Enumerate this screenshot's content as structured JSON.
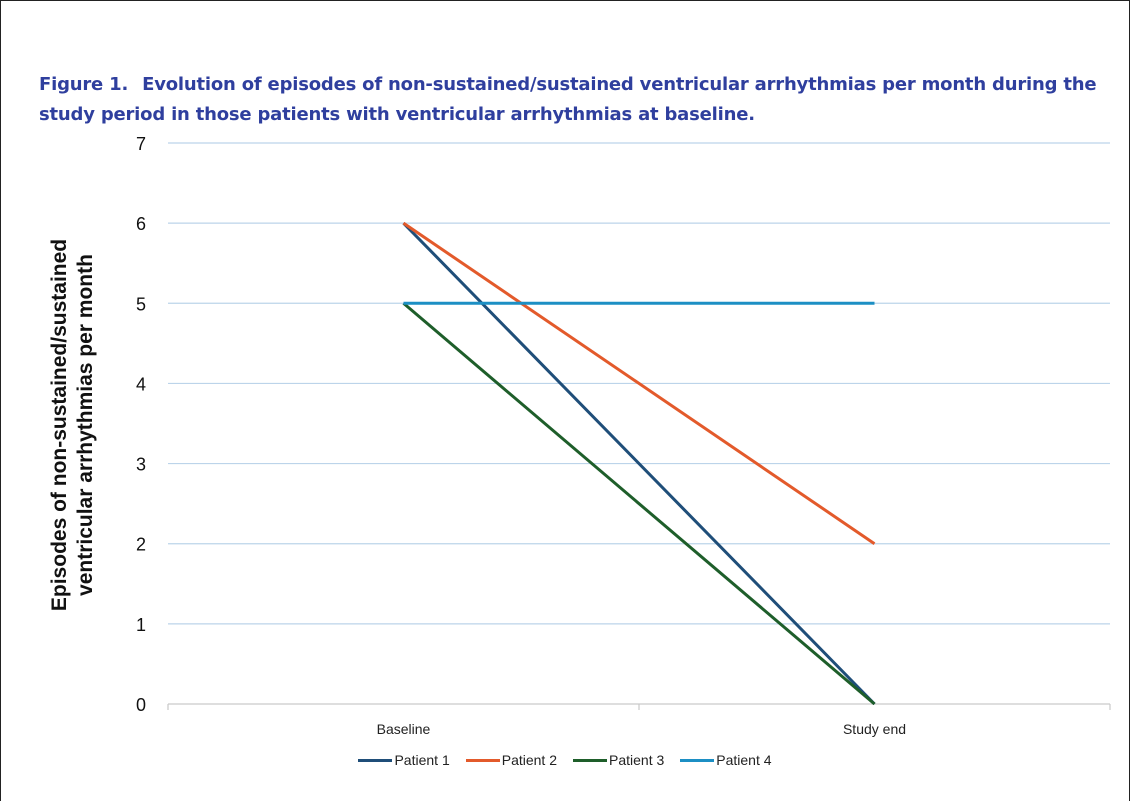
{
  "figure": {
    "label": "Figure 1.",
    "caption": "Evolution of episodes of non-sustained/sustained ventricular arrhythmias per month during the study period in those patients with ventricular arrhythmias at baseline."
  },
  "chart_data": {
    "type": "line",
    "title": "",
    "xlabel": "",
    "ylabel_lines": [
      "Episodes of non-sustained/sustained",
      "ventricular arrhythmias  per month"
    ],
    "categories": [
      "Baseline",
      "Study end"
    ],
    "ylim": [
      0,
      7
    ],
    "yticks": [
      0,
      1,
      2,
      3,
      4,
      5,
      6,
      7
    ],
    "grid": true,
    "legend_position": "bottom",
    "series": [
      {
        "name": "Patient 1",
        "values": [
          6,
          0
        ],
        "color": "#1f4e79"
      },
      {
        "name": "Patient 2",
        "values": [
          6,
          2
        ],
        "color": "#e35a2b"
      },
      {
        "name": "Patient 3",
        "values": [
          5,
          0
        ],
        "color": "#1e5e2a"
      },
      {
        "name": "Patient 4",
        "values": [
          5,
          5
        ],
        "color": "#1c8fc4"
      }
    ]
  }
}
